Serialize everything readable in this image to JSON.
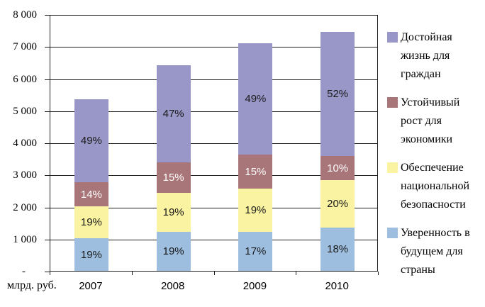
{
  "chart_data": {
    "type": "bar",
    "stacked": true,
    "title": "",
    "xlabel": "",
    "ylabel": "млрд. руб.",
    "ylim": [
      0,
      8000
    ],
    "y_tick_step": 1000,
    "y_tick_labels": [
      "8 000",
      "7 000",
      "6 000",
      "5 000",
      "4 000",
      "3 000",
      "2 000",
      "1 000",
      "-"
    ],
    "grid": true,
    "categories": [
      "2007",
      "2008",
      "2009",
      "2010"
    ],
    "totals": [
      5350,
      6400,
      7100,
      7450
    ],
    "series": [
      {
        "name": "Уверенность в будущем для страны",
        "color": "#9DBEDF",
        "label_color": "#1a1a1a",
        "percents": [
          19,
          19,
          17,
          18
        ],
        "percent_labels": [
          "19%",
          "19%",
          "17%",
          "18%"
        ]
      },
      {
        "name": "Обеспечение национальной безопасности",
        "color": "#FAF3A2",
        "label_color": "#1a1a1a",
        "percents": [
          19,
          19,
          19,
          20
        ],
        "percent_labels": [
          "19%",
          "19%",
          "19%",
          "20%"
        ]
      },
      {
        "name": "Устойчивый рост для экономики",
        "color": "#A87578",
        "label_color": "#ffffff",
        "percents": [
          14,
          15,
          15,
          10
        ],
        "percent_labels": [
          "14%",
          "15%",
          "15%",
          "10%"
        ]
      },
      {
        "name": "Достойная жизнь для граждан",
        "color": "#9996C8",
        "label_color": "#1a1a1a",
        "percents": [
          49,
          47,
          49,
          52
        ],
        "percent_labels": [
          "49%",
          "47%",
          "49%",
          "52%"
        ]
      }
    ],
    "legend_position": "right",
    "legend": [
      {
        "label": "Достойная жизнь для граждан",
        "color": "#9996C8"
      },
      {
        "label": "Устойчивый рост для экономики",
        "color": "#A87578"
      },
      {
        "label": "Обеспечение национальной безопасности",
        "color": "#FAF3A2"
      },
      {
        "label": "Уверенность в будущем для страны",
        "color": "#9DBEDF"
      }
    ]
  }
}
